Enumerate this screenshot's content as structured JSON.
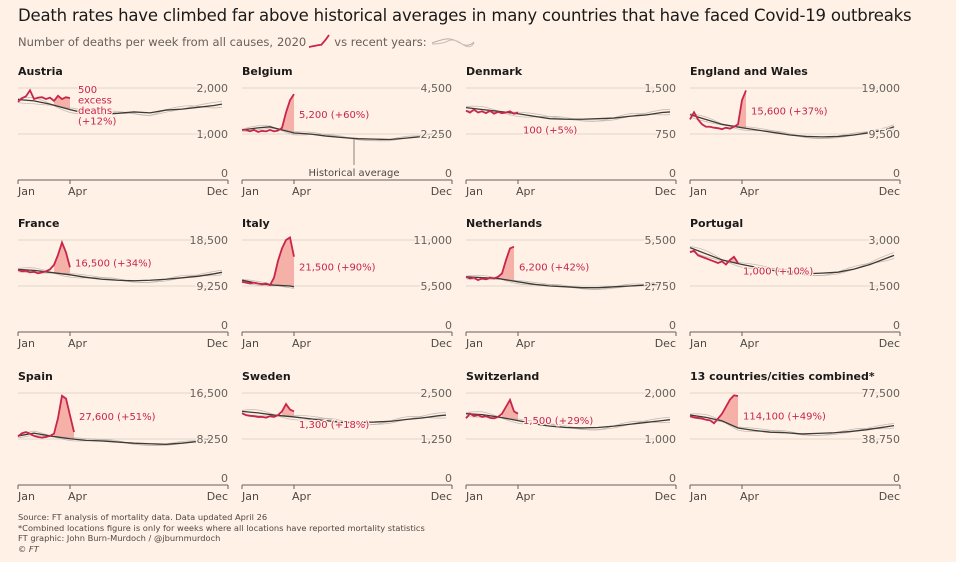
{
  "title": "Death rates have climbed far above historical averages in many countries that have faced Covid-19 outbreaks",
  "subtitle": {
    "before": "Number of deaths per week from all causes,",
    "year": "2020",
    "after": "vs recent years:"
  },
  "colors": {
    "background": "#fff1e5",
    "y2020": "#c9254a",
    "excess_fill": "#f3a49c",
    "average": "#3d3935",
    "recent_years": "#b8b0aa",
    "grid": "#e0d6cd"
  },
  "chart_data": [
    {
      "type": "line",
      "title": "Austria",
      "x_ticks": [
        "Jan",
        "Apr",
        "Dec"
      ],
      "y_ticks": [
        "0",
        "1,000",
        "2,000"
      ],
      "ylim": [
        0,
        2000
      ],
      "y2020": [
        1700,
        1780,
        1820,
        1950,
        1760,
        1790,
        1800,
        1760,
        1790,
        1720,
        1830,
        1760,
        1800,
        1780
      ],
      "average": [
        [
          1,
          1750
        ],
        [
          5,
          1720
        ],
        [
          9,
          1650
        ],
        [
          14,
          1530
        ],
        [
          18,
          1450
        ],
        [
          22,
          1430
        ],
        [
          26,
          1450
        ],
        [
          30,
          1480
        ],
        [
          34,
          1460
        ],
        [
          38,
          1520
        ],
        [
          42,
          1540
        ],
        [
          46,
          1580
        ],
        [
          50,
          1620
        ],
        [
          52,
          1650
        ]
      ],
      "excess_range": [
        10,
        14
      ],
      "annotation": [
        "500",
        "excess",
        "deaths",
        "(+12%)"
      ]
    },
    {
      "type": "line",
      "title": "Belgium",
      "x_ticks": [
        "Jan",
        "Apr",
        "Dec"
      ],
      "y_ticks": [
        "0",
        "2,250",
        "4,500"
      ],
      "ylim": [
        0,
        4500
      ],
      "y2020": [
        2450,
        2450,
        2380,
        2450,
        2350,
        2400,
        2380,
        2450,
        2380,
        2420,
        2550,
        3300,
        3900,
        4200
      ],
      "average": [
        [
          1,
          2450
        ],
        [
          5,
          2550
        ],
        [
          8,
          2600
        ],
        [
          11,
          2450
        ],
        [
          14,
          2300
        ],
        [
          18,
          2250
        ],
        [
          22,
          2150
        ],
        [
          26,
          2080
        ],
        [
          30,
          2020
        ],
        [
          34,
          2000
        ],
        [
          38,
          1980
        ],
        [
          42,
          2050
        ],
        [
          46,
          2120
        ],
        [
          50,
          2200
        ],
        [
          52,
          2230
        ]
      ],
      "excess_range": [
        11,
        14
      ],
      "annotation": [
        "5,200 (+60%)"
      ],
      "average_label": "Historical average"
    },
    {
      "type": "line",
      "title": "Denmark",
      "x_ticks": [
        "Jan",
        "Apr",
        "Dec"
      ],
      "y_ticks": [
        "0",
        "750",
        "1,500"
      ],
      "ylim": [
        0,
        1500
      ],
      "y2020": [
        1130,
        1100,
        1150,
        1100,
        1120,
        1090,
        1130,
        1080,
        1110,
        1090,
        1100,
        1120,
        1080,
        1100
      ],
      "average": [
        [
          1,
          1180
        ],
        [
          5,
          1150
        ],
        [
          9,
          1120
        ],
        [
          14,
          1080
        ],
        [
          18,
          1040
        ],
        [
          22,
          1000
        ],
        [
          26,
          990
        ],
        [
          30,
          990
        ],
        [
          34,
          1000
        ],
        [
          38,
          1010
        ],
        [
          42,
          1040
        ],
        [
          46,
          1060
        ],
        [
          50,
          1100
        ],
        [
          52,
          1110
        ]
      ],
      "excess_range": [
        11,
        14
      ],
      "annotation": [
        "100 (+5%)"
      ]
    },
    {
      "type": "line",
      "title": "England and Wales",
      "x_ticks": [
        "Jan",
        "Apr",
        "Dec"
      ],
      "y_ticks": [
        "0",
        "9,500",
        "19,000"
      ],
      "ylim": [
        0,
        19000
      ],
      "y2020": [
        12500,
        14000,
        12500,
        11500,
        11000,
        11000,
        10800,
        10700,
        10500,
        10800,
        10600,
        11000,
        11500,
        16500,
        18500
      ],
      "average": [
        [
          1,
          13500
        ],
        [
          5,
          12500
        ],
        [
          9,
          11500
        ],
        [
          14,
          10800
        ],
        [
          18,
          10300
        ],
        [
          22,
          9800
        ],
        [
          26,
          9300
        ],
        [
          30,
          9000
        ],
        [
          34,
          8900
        ],
        [
          38,
          9000
        ],
        [
          42,
          9300
        ],
        [
          46,
          9800
        ],
        [
          50,
          10400
        ],
        [
          52,
          11000
        ]
      ],
      "excess_range": [
        12,
        15
      ],
      "annotation": [
        "15,600 (+37%)"
      ]
    },
    {
      "type": "line",
      "title": "France",
      "x_ticks": [
        "Jan",
        "Apr",
        "Dec"
      ],
      "y_ticks": [
        "0",
        "9,250",
        "18,500"
      ],
      "ylim": [
        0,
        18500
      ],
      "y2020": [
        12500,
        12200,
        12300,
        12000,
        12100,
        11800,
        12000,
        12200,
        12600,
        13500,
        15500,
        18000,
        16000,
        13000
      ],
      "average": [
        [
          1,
          12600
        ],
        [
          5,
          12400
        ],
        [
          9,
          12000
        ],
        [
          14,
          11500
        ],
        [
          18,
          11000
        ],
        [
          22,
          10600
        ],
        [
          26,
          10400
        ],
        [
          30,
          10300
        ],
        [
          34,
          10400
        ],
        [
          38,
          10600
        ],
        [
          42,
          10900
        ],
        [
          46,
          11200
        ],
        [
          50,
          11700
        ],
        [
          52,
          12000
        ]
      ],
      "excess_range": [
        10,
        14
      ],
      "annotation": [
        "16,500 (+34%)"
      ]
    },
    {
      "type": "line",
      "title": "Italy",
      "x_ticks": [
        "Jan",
        "Apr",
        "Dec"
      ],
      "y_ticks": [
        "0",
        "5,500",
        "11,000"
      ],
      "ylim": [
        0,
        11000
      ],
      "y2020": [
        6000,
        5900,
        5800,
        5900,
        5800,
        5700,
        5800,
        5600,
        6500,
        8500,
        10000,
        11000,
        11300,
        9000
      ],
      "average": [
        [
          1,
          6200
        ],
        [
          3,
          6000
        ],
        [
          5,
          5800
        ],
        [
          7,
          5700
        ],
        [
          9,
          5600
        ],
        [
          11,
          5550
        ],
        [
          13,
          5500
        ],
        [
          14,
          5400
        ]
      ],
      "excess_range": [
        8,
        14
      ],
      "annotation": [
        "21,500 (+90%)"
      ]
    },
    {
      "type": "line",
      "title": "Netherlands",
      "x_ticks": [
        "Jan",
        "Apr",
        "Dec"
      ],
      "y_ticks": [
        "0",
        "2,750",
        "5,500"
      ],
      "ylim": [
        0,
        5500
      ],
      "y2020": [
        3300,
        3200,
        3250,
        3100,
        3200,
        3150,
        3250,
        3200,
        3300,
        3500,
        4300,
        5000,
        5100
      ],
      "average": [
        [
          1,
          3300
        ],
        [
          5,
          3250
        ],
        [
          9,
          3200
        ],
        [
          14,
          3000
        ],
        [
          18,
          2850
        ],
        [
          22,
          2750
        ],
        [
          26,
          2700
        ],
        [
          30,
          2650
        ],
        [
          34,
          2650
        ],
        [
          38,
          2700
        ],
        [
          42,
          2750
        ],
        [
          46,
          2800
        ],
        [
          50,
          2900
        ],
        [
          52,
          2950
        ]
      ],
      "excess_range": [
        9,
        13
      ],
      "annotation": [
        "6,200 (+42%)"
      ]
    },
    {
      "type": "line",
      "title": "Portugal",
      "x_ticks": [
        "Jan",
        "Apr",
        "Dec"
      ],
      "y_ticks": [
        "0",
        "1,500",
        "3,000"
      ],
      "ylim": [
        0,
        3000
      ],
      "y2020": [
        2600,
        2650,
        2500,
        2450,
        2400,
        2350,
        2300,
        2250,
        2300,
        2200,
        2350,
        2450,
        2250
      ],
      "average": [
        [
          1,
          2750
        ],
        [
          5,
          2550
        ],
        [
          9,
          2350
        ],
        [
          14,
          2200
        ],
        [
          18,
          2100
        ],
        [
          22,
          2000
        ],
        [
          26,
          1950
        ],
        [
          30,
          1900
        ],
        [
          34,
          1920
        ],
        [
          38,
          1950
        ],
        [
          42,
          2050
        ],
        [
          46,
          2200
        ],
        [
          50,
          2400
        ],
        [
          52,
          2500
        ]
      ],
      "excess_range": [
        10,
        13
      ],
      "annotation": [
        "1,000 (+10%)"
      ]
    },
    {
      "type": "line",
      "title": "Spain",
      "x_ticks": [
        "Jan",
        "Apr",
        "Dec"
      ],
      "y_ticks": [
        "0",
        "8,250",
        "16,500"
      ],
      "ylim": [
        0,
        16500
      ],
      "y2020": [
        8700,
        9300,
        9500,
        9200,
        8800,
        8600,
        8500,
        8600,
        8800,
        9200,
        12000,
        16000,
        15500,
        12500,
        9500
      ],
      "average": [
        [
          1,
          8800
        ],
        [
          5,
          9300
        ],
        [
          9,
          8800
        ],
        [
          14,
          8300
        ],
        [
          18,
          8000
        ],
        [
          22,
          7900
        ],
        [
          26,
          7700
        ],
        [
          30,
          7500
        ],
        [
          34,
          7400
        ],
        [
          38,
          7300
        ],
        [
          42,
          7500
        ],
        [
          46,
          7800
        ],
        [
          50,
          8200
        ],
        [
          52,
          8400
        ]
      ],
      "excess_range": [
        10,
        15
      ],
      "annotation": [
        "27,600 (+51%)"
      ]
    },
    {
      "type": "line",
      "title": "Sweden",
      "x_ticks": [
        "Jan",
        "Apr",
        "Dec"
      ],
      "y_ticks": [
        "0",
        "1,250",
        "2,500"
      ],
      "ylim": [
        0,
        2500
      ],
      "y2020": [
        1950,
        1900,
        1880,
        1870,
        1850,
        1850,
        1830,
        1870,
        1850,
        1900,
        2000,
        2200,
        2050,
        2000
      ],
      "average": [
        [
          1,
          2000
        ],
        [
          5,
          1960
        ],
        [
          9,
          1900
        ],
        [
          14,
          1850
        ],
        [
          18,
          1800
        ],
        [
          22,
          1750
        ],
        [
          26,
          1700
        ],
        [
          30,
          1700
        ],
        [
          34,
          1710
        ],
        [
          38,
          1730
        ],
        [
          42,
          1780
        ],
        [
          46,
          1820
        ],
        [
          50,
          1880
        ],
        [
          52,
          1900
        ]
      ],
      "excess_range": [
        11,
        14
      ],
      "annotation": [
        "1,300 (+18%)"
      ]
    },
    {
      "type": "line",
      "title": "Switzerland",
      "x_ticks": [
        "Jan",
        "Apr",
        "Dec"
      ],
      "y_ticks": [
        "0",
        "1,000",
        "2,000"
      ],
      "ylim": [
        0,
        2000
      ],
      "y2020": [
        1450,
        1550,
        1500,
        1520,
        1480,
        1500,
        1460,
        1450,
        1480,
        1550,
        1700,
        1850,
        1600,
        1550
      ],
      "average": [
        [
          1,
          1550
        ],
        [
          5,
          1530
        ],
        [
          9,
          1480
        ],
        [
          14,
          1400
        ],
        [
          18,
          1330
        ],
        [
          22,
          1280
        ],
        [
          26,
          1250
        ],
        [
          30,
          1240
        ],
        [
          34,
          1250
        ],
        [
          38,
          1280
        ],
        [
          42,
          1320
        ],
        [
          46,
          1360
        ],
        [
          50,
          1400
        ],
        [
          52,
          1420
        ]
      ],
      "excess_range": [
        10,
        14
      ],
      "annotation": [
        "1,500 (+29%)"
      ]
    },
    {
      "type": "line",
      "title": "13 countries/cities combined*",
      "x_ticks": [
        "Jan",
        "Apr",
        "Dec"
      ],
      "y_ticks": [
        "0",
        "38,750",
        "77,500"
      ],
      "ylim": [
        0,
        77500
      ],
      "y2020": [
        58000,
        57000,
        56500,
        56000,
        55000,
        54500,
        52000,
        56000,
        60000,
        66000,
        72000,
        75500,
        75000
      ],
      "average": [
        [
          1,
          59000
        ],
        [
          5,
          57000
        ],
        [
          9,
          54000
        ],
        [
          13,
          48000
        ],
        [
          17,
          46000
        ],
        [
          21,
          44500
        ],
        [
          25,
          44000
        ],
        [
          29,
          43000
        ],
        [
          33,
          43500
        ],
        [
          37,
          44000
        ],
        [
          41,
          45000
        ],
        [
          45,
          46500
        ],
        [
          49,
          48500
        ],
        [
          52,
          50000
        ]
      ],
      "excess_range": [
        8,
        13
      ],
      "annotation": [
        "114,100 (+49%)"
      ]
    }
  ],
  "footer": [
    "Source: FT analysis of mortality data. Data updated April 26",
    "*Combined locations figure is only for weeks where all locations have reported mortality statistics",
    "FT graphic: John Burn-Murdoch / @jburnmurdoch",
    "© FT"
  ]
}
